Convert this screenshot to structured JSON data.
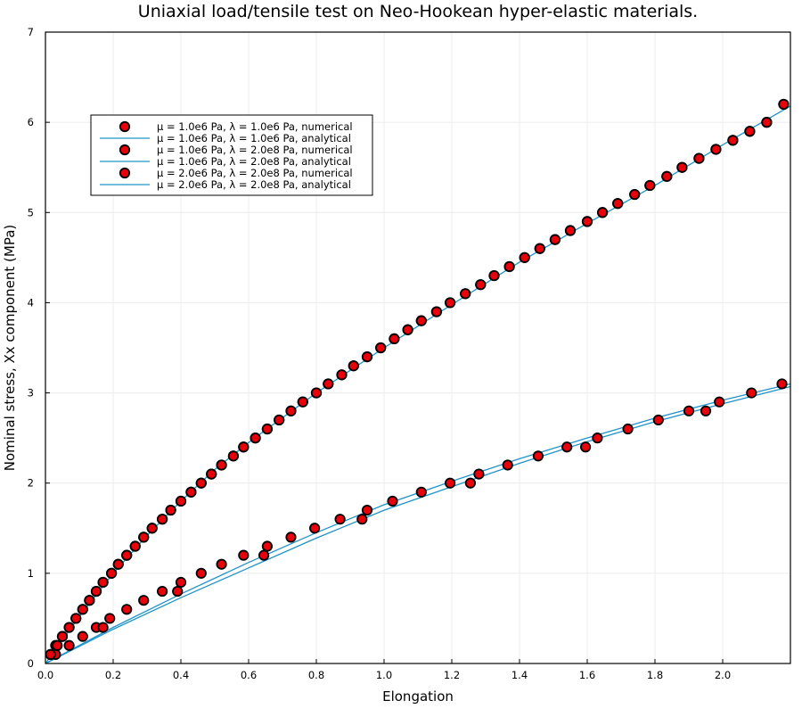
{
  "chart_data": {
    "type": "scatter",
    "title": "Uniaxial load/tensile test on Neo-Hookean hyper-elastic materials.",
    "xlabel": "Elongation",
    "ylabel": "Nominal stress, Xx component (MPa)",
    "xlim": [
      0,
      2.2
    ],
    "ylim": [
      0,
      7
    ],
    "xticks": [
      0.0,
      0.2,
      0.4,
      0.6,
      0.8,
      1.0,
      1.2,
      1.4,
      1.6,
      1.8,
      2.0
    ],
    "xtick_labels": [
      "0.0",
      "0.2",
      "0.4",
      "0.6",
      "0.8",
      "1.0",
      "1.2",
      "1.4",
      "1.6",
      "1.8",
      "2.0"
    ],
    "yticks": [
      0,
      1,
      2,
      3,
      4,
      5,
      6,
      7
    ],
    "ytick_labels": [
      "0",
      "1",
      "2",
      "3",
      "4",
      "5",
      "6",
      "7"
    ],
    "grid": true,
    "legend_position": "top-left",
    "colors": {
      "marker_fill": "#e8000b",
      "marker_edge": "#000000",
      "line": "#1f93c9",
      "frame": "#000000",
      "grid": "#ececec"
    },
    "series": [
      {
        "name": "μ = 1.0e6 Pa, λ = 1.0e6 Pa, numerical",
        "kind": "marker",
        "points": [
          [
            0.03,
            0.1
          ],
          [
            0.07,
            0.2
          ],
          [
            0.11,
            0.3
          ],
          [
            0.15,
            0.4
          ],
          [
            0.17,
            0.4
          ],
          [
            0.19,
            0.5
          ],
          [
            0.24,
            0.6
          ],
          [
            0.29,
            0.7
          ],
          [
            0.345,
            0.8
          ],
          [
            0.39,
            0.8
          ],
          [
            0.4,
            0.9
          ],
          [
            0.46,
            1.0
          ],
          [
            0.52,
            1.1
          ],
          [
            0.585,
            1.2
          ],
          [
            0.645,
            1.2
          ],
          [
            0.655,
            1.3
          ],
          [
            0.725,
            1.4
          ],
          [
            0.795,
            1.5
          ],
          [
            0.87,
            1.6
          ],
          [
            0.935,
            1.6
          ],
          [
            0.95,
            1.7
          ],
          [
            1.025,
            1.8
          ],
          [
            1.11,
            1.9
          ],
          [
            1.195,
            2.0
          ],
          [
            1.255,
            2.0
          ],
          [
            1.28,
            2.1
          ],
          [
            1.365,
            2.2
          ],
          [
            1.455,
            2.3
          ],
          [
            1.54,
            2.4
          ],
          [
            1.595,
            2.4
          ],
          [
            1.63,
            2.5
          ],
          [
            1.72,
            2.6
          ],
          [
            1.81,
            2.7
          ],
          [
            1.9,
            2.8
          ],
          [
            1.95,
            2.8
          ],
          [
            1.99,
            2.9
          ],
          [
            2.085,
            3.0
          ],
          [
            2.175,
            3.1
          ]
        ]
      },
      {
        "name": "μ = 1.0e6 Pa, λ = 1.0e6 Pa, analytical",
        "kind": "line",
        "points": [
          [
            0.0,
            0.0
          ],
          [
            0.2,
            0.38
          ],
          [
            0.4,
            0.73
          ],
          [
            0.6,
            1.06
          ],
          [
            0.8,
            1.39
          ],
          [
            1.0,
            1.7
          ],
          [
            1.2,
            1.96
          ],
          [
            1.4,
            2.22
          ],
          [
            1.6,
            2.46
          ],
          [
            1.8,
            2.68
          ],
          [
            2.0,
            2.88
          ],
          [
            2.2,
            3.07
          ]
        ]
      },
      {
        "name": "μ = 1.0e6 Pa, λ = 2.0e8 Pa, numerical",
        "kind": "marker",
        "points": [
          [
            0.015,
            0.1
          ],
          [
            0.03,
            0.2
          ],
          [
            0.05,
            0.3
          ],
          [
            0.07,
            0.4
          ],
          [
            0.09,
            0.5
          ],
          [
            0.11,
            0.6
          ],
          [
            0.13,
            0.7
          ],
          [
            0.15,
            0.8
          ],
          [
            0.17,
            0.9
          ],
          [
            0.195,
            1.0
          ],
          [
            0.215,
            1.1
          ],
          [
            0.24,
            1.2
          ],
          [
            0.265,
            1.3
          ],
          [
            0.29,
            1.4
          ],
          [
            0.315,
            1.5
          ],
          [
            0.345,
            1.6
          ],
          [
            0.37,
            1.7
          ],
          [
            0.4,
            1.8
          ],
          [
            0.43,
            1.9
          ],
          [
            0.46,
            2.0
          ],
          [
            0.49,
            2.1
          ],
          [
            0.52,
            2.2
          ],
          [
            0.555,
            2.3
          ],
          [
            0.585,
            2.4
          ],
          [
            0.62,
            2.5
          ],
          [
            0.655,
            2.6
          ],
          [
            0.69,
            2.7
          ],
          [
            0.725,
            2.8
          ],
          [
            0.76,
            2.9
          ],
          [
            0.8,
            3.0
          ],
          [
            0.835,
            3.1
          ],
          [
            0.875,
            3.2
          ],
          [
            0.91,
            3.3
          ],
          [
            0.95,
            3.4
          ],
          [
            0.99,
            3.5
          ],
          [
            1.03,
            3.6
          ],
          [
            1.07,
            3.7
          ],
          [
            1.11,
            3.8
          ],
          [
            1.155,
            3.9
          ],
          [
            1.195,
            4.0
          ],
          [
            1.24,
            4.1
          ],
          [
            1.285,
            4.2
          ],
          [
            1.325,
            4.3
          ],
          [
            1.37,
            4.4
          ],
          [
            1.415,
            4.5
          ],
          [
            1.46,
            4.6
          ],
          [
            1.505,
            4.7
          ],
          [
            1.55,
            4.8
          ],
          [
            1.6,
            4.9
          ],
          [
            1.645,
            5.0
          ],
          [
            1.69,
            5.1
          ],
          [
            1.74,
            5.2
          ],
          [
            1.785,
            5.3
          ],
          [
            1.835,
            5.4
          ],
          [
            1.88,
            5.5
          ],
          [
            1.93,
            5.6
          ],
          [
            1.98,
            5.7
          ],
          [
            2.03,
            5.8
          ],
          [
            2.08,
            5.9
          ],
          [
            2.13,
            6.0
          ],
          [
            2.18,
            6.2
          ]
        ]
      },
      {
        "name": "μ = 1.0e6 Pa, λ = 2.0e8 Pa, analytical",
        "kind": "line",
        "points": [
          [
            0.0,
            0.0
          ],
          [
            0.1,
            0.52
          ],
          [
            0.2,
            1.0
          ],
          [
            0.3,
            1.42
          ],
          [
            0.4,
            1.8
          ],
          [
            0.5,
            2.15
          ],
          [
            0.6,
            2.45
          ],
          [
            0.8,
            3.0
          ],
          [
            1.0,
            3.5
          ],
          [
            1.2,
            3.98
          ],
          [
            1.4,
            4.45
          ],
          [
            1.6,
            4.88
          ],
          [
            1.8,
            5.3
          ],
          [
            2.0,
            5.75
          ],
          [
            2.2,
            6.18
          ]
        ]
      },
      {
        "name": "μ = 2.0e6 Pa, λ = 2.0e8 Pa, numerical",
        "kind": "marker",
        "points": [
          [
            0.015,
            0.1
          ],
          [
            0.035,
            0.2
          ],
          [
            0.05,
            0.3
          ],
          [
            0.07,
            0.4
          ],
          [
            0.09,
            0.5
          ],
          [
            0.11,
            0.6
          ],
          [
            0.13,
            0.7
          ],
          [
            0.15,
            0.8
          ],
          [
            0.17,
            0.9
          ],
          [
            0.195,
            1.0
          ],
          [
            0.215,
            1.1
          ],
          [
            0.24,
            1.2
          ],
          [
            0.265,
            1.3
          ],
          [
            0.29,
            1.4
          ],
          [
            0.315,
            1.5
          ],
          [
            0.345,
            1.6
          ],
          [
            0.37,
            1.7
          ],
          [
            0.4,
            1.8
          ],
          [
            0.43,
            1.9
          ],
          [
            0.46,
            2.0
          ],
          [
            0.49,
            2.1
          ],
          [
            0.52,
            2.2
          ],
          [
            0.555,
            2.3
          ],
          [
            0.585,
            2.4
          ],
          [
            0.62,
            2.5
          ],
          [
            0.655,
            2.6
          ],
          [
            0.69,
            2.7
          ],
          [
            0.725,
            2.8
          ],
          [
            0.76,
            2.9
          ],
          [
            0.8,
            3.0
          ],
          [
            0.835,
            3.1
          ],
          [
            0.875,
            3.2
          ],
          [
            0.91,
            3.3
          ],
          [
            0.95,
            3.4
          ],
          [
            0.99,
            3.5
          ],
          [
            1.03,
            3.6
          ],
          [
            1.07,
            3.7
          ],
          [
            1.11,
            3.8
          ],
          [
            1.155,
            3.9
          ],
          [
            1.195,
            4.0
          ],
          [
            1.24,
            4.1
          ],
          [
            1.285,
            4.2
          ],
          [
            1.325,
            4.3
          ],
          [
            1.37,
            4.4
          ],
          [
            1.415,
            4.5
          ],
          [
            1.46,
            4.6
          ],
          [
            1.505,
            4.7
          ],
          [
            1.55,
            4.8
          ],
          [
            1.6,
            4.9
          ],
          [
            1.645,
            5.0
          ],
          [
            1.69,
            5.1
          ],
          [
            1.74,
            5.2
          ],
          [
            1.785,
            5.3
          ],
          [
            1.835,
            5.4
          ],
          [
            1.88,
            5.5
          ],
          [
            1.93,
            5.6
          ],
          [
            1.98,
            5.7
          ],
          [
            2.03,
            5.8
          ],
          [
            2.08,
            5.9
          ],
          [
            2.13,
            6.0
          ],
          [
            2.18,
            6.2
          ]
        ]
      },
      {
        "name": "μ = 2.0e6 Pa, λ = 2.0e8 Pa, analytical",
        "kind": "line",
        "points": [
          [
            0.0,
            0.0
          ],
          [
            0.2,
            0.4
          ],
          [
            0.4,
            0.77
          ],
          [
            0.6,
            1.12
          ],
          [
            0.8,
            1.45
          ],
          [
            1.0,
            1.76
          ],
          [
            1.2,
            2.02
          ],
          [
            1.4,
            2.27
          ],
          [
            1.6,
            2.5
          ],
          [
            1.8,
            2.72
          ],
          [
            2.0,
            2.92
          ],
          [
            2.2,
            3.1
          ]
        ]
      }
    ]
  }
}
